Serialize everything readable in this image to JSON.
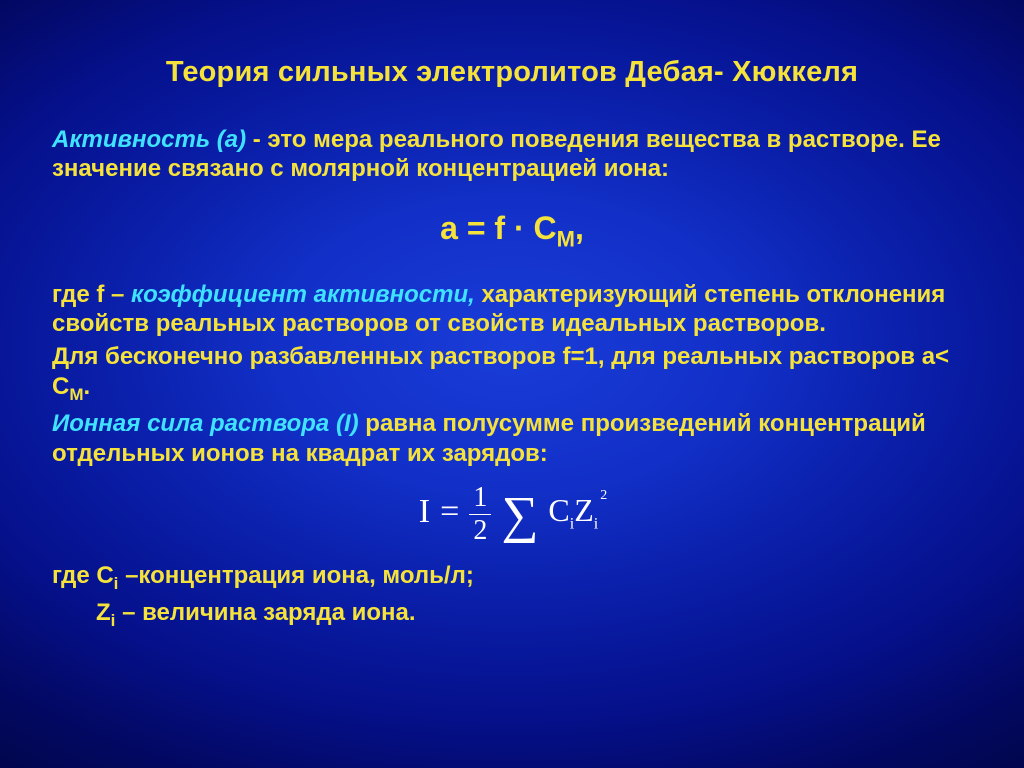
{
  "colors": {
    "title": "#f5e23a",
    "body": "#f5e23a",
    "term_highlight": "#3fe2ff",
    "formula": "#ffffff",
    "bg_center": "#1a3cd8",
    "bg_edge": "#010540"
  },
  "title": "Теория сильных электролитов Дебая- Хюккеля",
  "para1": {
    "term": "Активность (а)",
    "rest": "  - это мера реального поведения вещества в растворе. Ее значение связано с молярной концентрацией иона:"
  },
  "formula1": {
    "lhs": "a = f · C",
    "sub": "М",
    "tail": ","
  },
  "para2": {
    "lead": "где f – ",
    "term": "коэффициент активности,",
    "rest": " характеризующий степень отклонения свойств  реальных  растворов от свойств идеальных растворов."
  },
  "para3_a": "Для бесконечно разбавленных растворов f=1, для реальных растворов     a< C",
  "para3_sub": "М",
  "para3_tail": ".",
  "para4": {
    "term": "Ионная сила раствора (I)",
    "rest": " равна полусумме произведений концентраций отдельных ионов на квадрат их зарядов:"
  },
  "formula2": {
    "I": "I",
    "eq": "=",
    "num": "1",
    "den": "2",
    "sigma": "∑",
    "C": "C",
    "Ci": "i",
    "Z": "Z",
    "Zi": "i",
    "exp": "2"
  },
  "para5": {
    "lead": "где С",
    "sub": "i",
    "rest": " –концентрация иона, моль/л;"
  },
  "para6": {
    "lead": "Z",
    "sub": "i",
    "rest": " – величина заряда иона."
  }
}
